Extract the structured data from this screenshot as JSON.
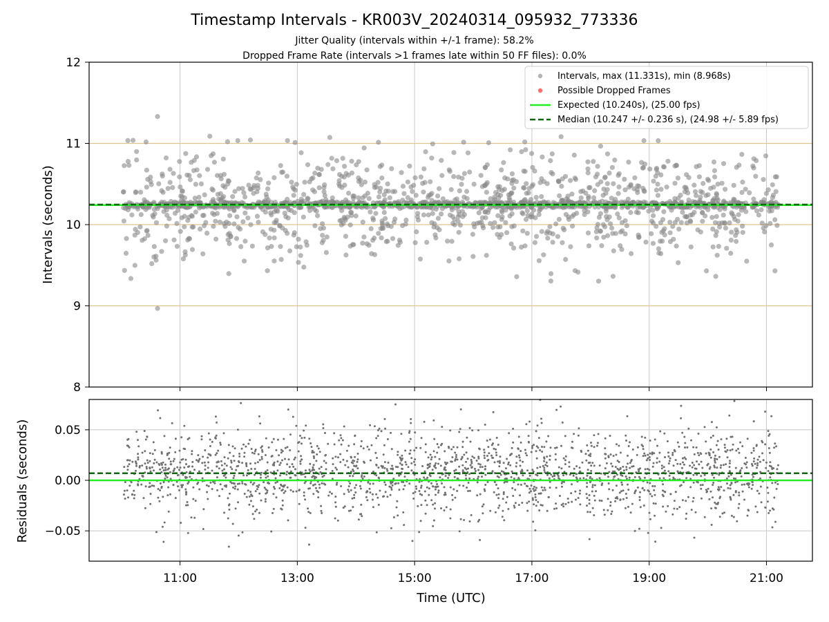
{
  "chart_data": [
    {
      "type": "scatter",
      "title": "Timestamp Intervals - KR003V_20240314_095932_773336",
      "subtitle_lines": [
        "Jitter Quality (intervals within +/-1 frame): 58.2%",
        "Dropped Frame Rate (intervals >1 frames late within 50 FF files): 0.0%"
      ],
      "xlabel": "",
      "ylabel": "Intervals (seconds)",
      "xlim": [
        "09:27",
        "21:47"
      ],
      "ylim": [
        8,
        12
      ],
      "x_data_start": "10:02",
      "x_data_end": "21:12",
      "xticks": [
        "11:00",
        "13:00",
        "15:00",
        "17:00",
        "19:00",
        "21:00"
      ],
      "yticks": [
        8,
        9,
        10,
        11,
        12
      ],
      "y_tick_labels": [
        "8",
        "9",
        "10",
        "11",
        "12"
      ],
      "grid": true,
      "horizontal_reference_lines": [
        9,
        10,
        11
      ],
      "legend_position": "top-right",
      "series": [
        {
          "name": "Intervals, max (11.331s), min (8.968s)",
          "kind": "scatter",
          "color": "#888888",
          "max": 11.331,
          "min": 8.968,
          "typical_band": [
            10.21,
            10.28
          ],
          "spread_range": [
            9.3,
            11.1
          ],
          "points_shown": 2000
        },
        {
          "name": "Possible Dropped Frames",
          "kind": "scatter",
          "color": "#ff5555",
          "count": 0
        },
        {
          "name": "Expected (10.240s), (25.00 fps)",
          "kind": "hline",
          "y": 10.24,
          "color": "#22ee22",
          "style": "solid"
        },
        {
          "name": "Median (10.247 +/- 0.236 s), (24.98 +/- 5.89 fps)",
          "kind": "hline",
          "y": 10.247,
          "color": "#116611",
          "style": "dashed"
        }
      ],
      "notable_points": [
        {
          "x": "10:37",
          "y": 11.331
        },
        {
          "x": "10:37",
          "y": 8.968
        }
      ]
    },
    {
      "type": "scatter",
      "title": "",
      "xlabel": "Time (UTC)",
      "ylabel": "Residuals (seconds)",
      "xlim": [
        "09:27",
        "21:47"
      ],
      "ylim": [
        -0.08,
        0.08
      ],
      "xticks": [
        "11:00",
        "13:00",
        "15:00",
        "17:00",
        "19:00",
        "21:00"
      ],
      "yticks": [
        -0.05,
        0.0,
        0.05
      ],
      "y_tick_labels": [
        "−0.05",
        "0.00",
        "0.05"
      ],
      "grid": true,
      "series": [
        {
          "name": "",
          "kind": "scatter",
          "color": "#707070",
          "typical_range": [
            -0.04,
            0.04
          ],
          "spread_range": [
            -0.08,
            0.08
          ],
          "points_shown": 2000
        },
        {
          "name": "",
          "kind": "hline",
          "y": 0.0,
          "color": "#22ee22",
          "style": "solid"
        },
        {
          "name": "",
          "kind": "hline",
          "y": 0.007,
          "color": "#116611",
          "style": "dashed"
        }
      ]
    }
  ]
}
